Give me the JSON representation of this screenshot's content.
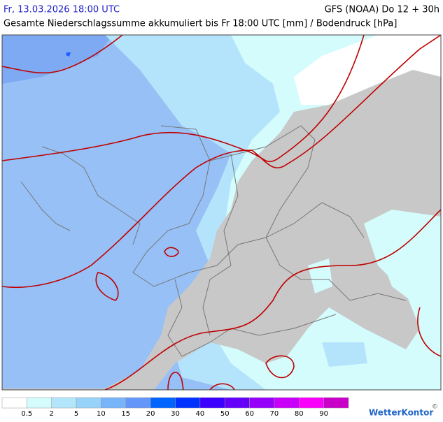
{
  "header": {
    "date": "Fr, 13.03.2026 18:00 UTC",
    "model": "GFS (NOAA) Do 12 + 30h",
    "subtitle": "Gesamte Niederschlagssumme akkumuliert bis Fr 18:00 UTC [mm] / Bodendruck [hPa]"
  },
  "legend": {
    "labels": [
      0.5,
      2,
      5,
      10,
      15,
      20,
      30,
      40,
      50,
      60,
      70,
      80,
      90
    ],
    "colors": [
      "#ffffff",
      "#d4fcfc",
      "#b4e6fb",
      "#96d2fa",
      "#78b4fa",
      "#6496fa",
      "#0064ff",
      "#0032ff",
      "#3c00ff",
      "#6400fa",
      "#9600fa",
      "#c800fa",
      "#fa00fa",
      "#c800c8"
    ]
  },
  "footer": {
    "brand": "WetterKontor",
    "copyright": "©"
  }
}
